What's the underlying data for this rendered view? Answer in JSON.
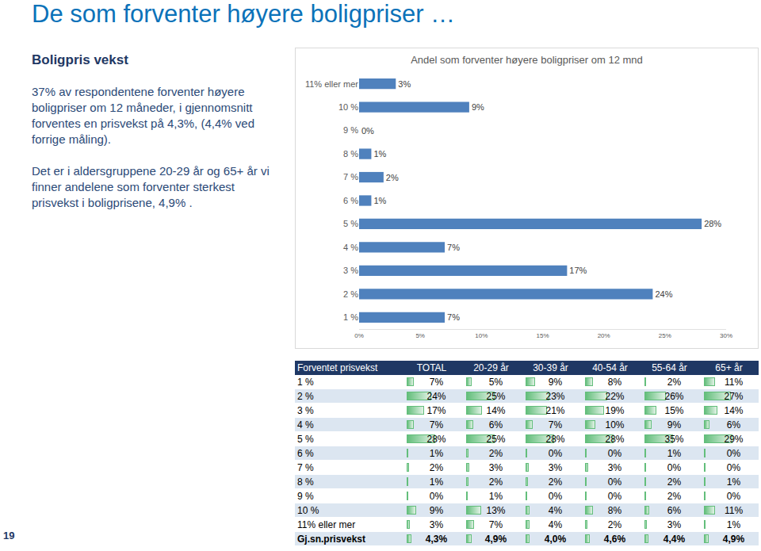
{
  "slide": {
    "title": "De som forventer høyere boligpriser …",
    "heading": "Boligpris vekst",
    "paragraphs": [
      "37% av respondentene forventer høyere boligpriser om 12 måneder, i gjennomsnitt forventes en prisvekst på 4,3%, (4,4% ved forrige måling).",
      "Det er i aldersgruppene 20-29 år og 65+ år vi finner andelene som forventer sterkest prisvekst i boligprisene, 4,9% ."
    ],
    "page_number": "19",
    "table": {
      "header": [
        "Forventet prisvekst",
        "TOTAL",
        "20-29 år",
        "30-39 år",
        "40-54 år",
        "55-64 år",
        "65+ år"
      ],
      "rows": [
        {
          "label": "1 %",
          "values": [
            7,
            5,
            9,
            8,
            2,
            11
          ],
          "value_labels": [
            "7%",
            "5%",
            "9%",
            "8%",
            "2%",
            "11%"
          ]
        },
        {
          "label": "2 %",
          "values": [
            24,
            25,
            23,
            22,
            26,
            27
          ],
          "value_labels": [
            "24%",
            "25%",
            "23%",
            "22%",
            "26%",
            "27%"
          ]
        },
        {
          "label": "3 %",
          "values": [
            17,
            14,
            21,
            19,
            15,
            14
          ],
          "value_labels": [
            "17%",
            "14%",
            "21%",
            "19%",
            "15%",
            "14%"
          ]
        },
        {
          "label": "4 %",
          "values": [
            7,
            6,
            7,
            10,
            9,
            6
          ],
          "value_labels": [
            "7%",
            "6%",
            "7%",
            "10%",
            "9%",
            "6%"
          ]
        },
        {
          "label": "5 %",
          "values": [
            28,
            25,
            28,
            28,
            35,
            29
          ],
          "value_labels": [
            "28%",
            "25%",
            "28%",
            "28%",
            "35%",
            "29%"
          ]
        },
        {
          "label": "6 %",
          "values": [
            1,
            2,
            0,
            0,
            1,
            0
          ],
          "value_labels": [
            "1%",
            "2%",
            "0%",
            "0%",
            "1%",
            "0%"
          ]
        },
        {
          "label": "7 %",
          "values": [
            2,
            3,
            3,
            3,
            0,
            0
          ],
          "value_labels": [
            "2%",
            "3%",
            "3%",
            "3%",
            "0%",
            "0%"
          ]
        },
        {
          "label": "8 %",
          "values": [
            1,
            2,
            2,
            0,
            2,
            1
          ],
          "value_labels": [
            "1%",
            "2%",
            "2%",
            "0%",
            "2%",
            "1%"
          ]
        },
        {
          "label": "9 %",
          "values": [
            0,
            1,
            0,
            0,
            2,
            0
          ],
          "value_labels": [
            "0%",
            "1%",
            "0%",
            "0%",
            "2%",
            "0%"
          ]
        },
        {
          "label": "10 %",
          "values": [
            9,
            13,
            4,
            8,
            6,
            11
          ],
          "value_labels": [
            "9%",
            "13%",
            "4%",
            "8%",
            "6%",
            "11%"
          ]
        },
        {
          "label": "11% eller mer",
          "values": [
            3,
            7,
            4,
            2,
            3,
            1
          ],
          "value_labels": [
            "3%",
            "7%",
            "4%",
            "2%",
            "3%",
            "1%"
          ]
        },
        {
          "label": "Gj.sn.prisvekst",
          "values": [
            4.3,
            4.9,
            4.0,
            4.6,
            4.4,
            4.9
          ],
          "value_labels": [
            "4,3%",
            "4,9%",
            "4,0%",
            "4,6%",
            "4,4%",
            "4,9%"
          ]
        }
      ]
    }
  },
  "chart_data": {
    "type": "bar",
    "title": "Andel som forventer høyere boligpriser om 12 mnd",
    "orientation": "horizontal",
    "categories": [
      "11% eller mer",
      "10 %",
      "9 %",
      "8 %",
      "7 %",
      "6 %",
      "5 %",
      "4 %",
      "3 %",
      "2 %",
      "1 %"
    ],
    "values": [
      3,
      9,
      0,
      1,
      2,
      1,
      28,
      7,
      17,
      24,
      7
    ],
    "value_labels": [
      "3%",
      "9%",
      "0%",
      "1%",
      "2%",
      "1%",
      "28%",
      "7%",
      "17%",
      "24%",
      "7%"
    ],
    "data_labels": true,
    "color": "#4f81bd",
    "xlim": [
      0,
      30
    ],
    "xticks": [
      {
        "value": 0,
        "label": "0%"
      },
      {
        "value": 5,
        "label": "5%"
      },
      {
        "value": 10,
        "label": "10%"
      },
      {
        "value": 15,
        "label": "15%"
      },
      {
        "value": 20,
        "label": "20%"
      },
      {
        "value": 25,
        "label": "25%"
      },
      {
        "value": 30,
        "label": "30%"
      }
    ],
    "grid": false
  }
}
